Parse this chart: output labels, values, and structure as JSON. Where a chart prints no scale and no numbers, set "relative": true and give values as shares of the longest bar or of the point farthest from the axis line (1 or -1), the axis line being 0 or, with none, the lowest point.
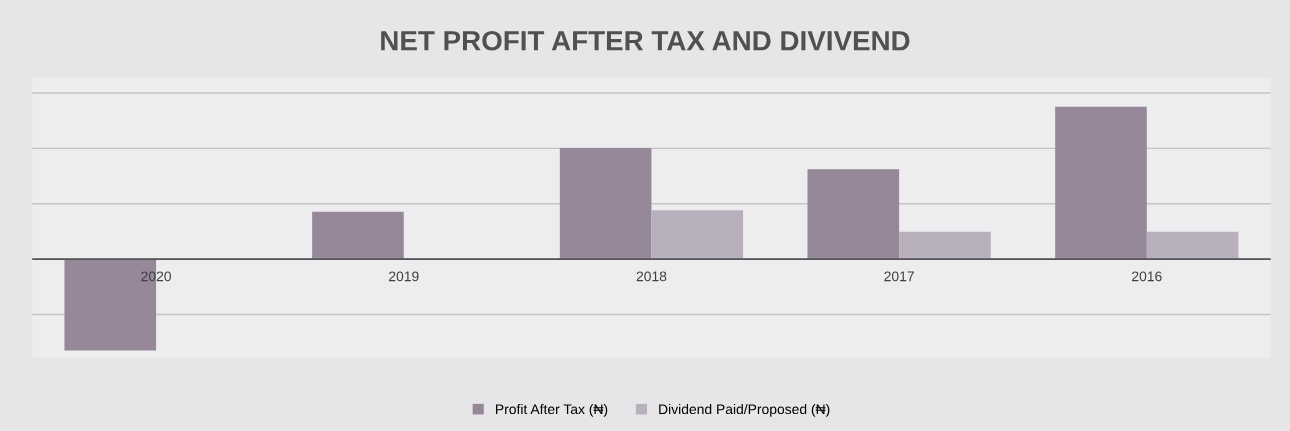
{
  "chart_data": {
    "type": "bar",
    "title": "NET PROFIT AFTER TAX AND DIVIVEND",
    "relative": true,
    "categories": [
      "2020",
      "2019",
      "2018",
      "2017",
      "2016"
    ],
    "series": [
      {
        "name": "Profit After Tax (₦)",
        "color": "#968898",
        "values": [
          -0.6,
          0.31,
          0.73,
          0.59,
          1.0
        ]
      },
      {
        "name": "Dividend Paid/Proposed (₦)",
        "color": "#b8b0bc",
        "values": [
          null,
          null,
          0.32,
          0.18,
          0.18
        ]
      }
    ],
    "grid": "y",
    "legend": "bottom"
  }
}
